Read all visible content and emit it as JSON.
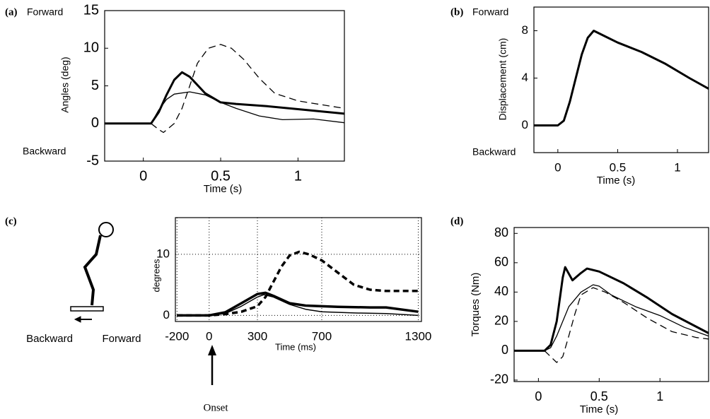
{
  "chart_data": [
    {
      "type": "line",
      "panel": "(a)",
      "forward": "Forward",
      "backward": "Backward",
      "ylabel": "Angles (deg)",
      "xlabel": "Time (s)",
      "xlim": [
        -0.25,
        1.3
      ],
      "ylim": [
        -5,
        15
      ],
      "xticks": [
        0,
        0.5,
        1
      ],
      "yticks": [
        -5,
        0,
        5,
        10,
        15
      ],
      "grid": false,
      "series": [
        {
          "color": "#000000",
          "line_width": 3,
          "dash": false,
          "x": [
            -0.25,
            0.05,
            0.1,
            0.15,
            0.2,
            0.25,
            0.3,
            0.4,
            0.5,
            0.6,
            0.8,
            1.0,
            1.3
          ],
          "values": [
            0,
            0,
            1.5,
            3.8,
            5.8,
            6.8,
            6.2,
            4,
            2.8,
            2.6,
            2.3,
            1.9,
            1.3
          ]
        },
        {
          "color": "#000000",
          "line_width": 1.3,
          "dash": false,
          "x": [
            -0.25,
            0.05,
            0.1,
            0.15,
            0.2,
            0.3,
            0.4,
            0.5,
            0.6,
            0.75,
            0.9,
            1.1,
            1.3
          ],
          "values": [
            0,
            0,
            1.8,
            3.2,
            3.9,
            4.2,
            3.8,
            2.8,
            2,
            1,
            0.5,
            0.6,
            0.1
          ]
        },
        {
          "color": "#000000",
          "line_width": 1.3,
          "dash": true,
          "x": [
            0.05,
            0.1,
            0.13,
            0.2,
            0.25,
            0.3,
            0.35,
            0.42,
            0.5,
            0.57,
            0.65,
            0.75,
            0.85,
            1.0,
            1.15,
            1.3
          ],
          "values": [
            0,
            -0.8,
            -1.2,
            0,
            2,
            5,
            8,
            10,
            10.5,
            10,
            8.5,
            6,
            4,
            3,
            2.5,
            2
          ]
        }
      ]
    },
    {
      "type": "line",
      "panel": "(b)",
      "forward": "Forward",
      "backward": "Backward",
      "ylabel": "Displacement (cm)",
      "xlabel": "Time (s)",
      "xlim": [
        -0.2,
        1.26
      ],
      "ylim": [
        -2.3,
        10
      ],
      "xticks": [
        0,
        0.5,
        1
      ],
      "yticks": [
        0,
        4,
        8
      ],
      "grid": false,
      "series": [
        {
          "color": "#000000",
          "line_width": 3,
          "dash": false,
          "x": [
            -0.2,
            0,
            0.05,
            0.1,
            0.15,
            0.2,
            0.25,
            0.3,
            0.4,
            0.5,
            0.7,
            0.9,
            1.1,
            1.26
          ],
          "values": [
            0,
            0,
            0.4,
            2,
            4,
            6,
            7.4,
            8,
            7.5,
            7,
            6.2,
            5.2,
            4,
            3.1
          ]
        }
      ]
    },
    {
      "type": "line",
      "panel": "(c)",
      "backward": "Backward",
      "forward": "Forward",
      "ylabel": "degrees",
      "xlabel": "Time (ms)",
      "annotation": "Onset",
      "xlim": [
        -210,
        1320
      ],
      "ylim": [
        -1,
        16
      ],
      "xticks": [
        -200,
        0,
        300,
        700,
        1300
      ],
      "yticks": [
        0,
        10
      ],
      "grid": true,
      "series": [
        {
          "color": "#000000",
          "line_width": 3.5,
          "dash": false,
          "x": [
            -200,
            0,
            100,
            200,
            300,
            350,
            400,
            500,
            600,
            800,
            1000,
            1100,
            1300
          ],
          "values": [
            0,
            0,
            0.5,
            2,
            3.5,
            3.7,
            3.2,
            2,
            1.6,
            1.4,
            1.3,
            1.3,
            0.6
          ]
        },
        {
          "color": "#000000",
          "line_width": 1.5,
          "dash": false,
          "x": [
            -200,
            0,
            100,
            200,
            300,
            340,
            400,
            500,
            600,
            700,
            900,
            1100,
            1300
          ],
          "values": [
            0,
            0,
            0.3,
            1.5,
            3,
            3.4,
            3,
            1.8,
            1,
            0.6,
            0.4,
            0.3,
            0
          ]
        },
        {
          "color": "#000000",
          "line_width": 3.5,
          "dash": true,
          "x": [
            -200,
            0,
            100,
            200,
            300,
            350,
            400,
            450,
            500,
            560,
            620,
            700,
            800,
            900,
            1000,
            1100,
            1300
          ],
          "values": [
            0,
            0,
            0.2,
            0.6,
            1.5,
            3,
            5.5,
            8,
            9.8,
            10.4,
            10,
            9,
            7,
            5,
            4.2,
            4,
            4
          ]
        }
      ]
    },
    {
      "type": "line",
      "panel": "(d)",
      "ylabel": "Torques (Nm)",
      "xlabel": "Time (s)",
      "xlim": [
        -0.2,
        1.4
      ],
      "ylim": [
        -21,
        84
      ],
      "xticks": [
        0,
        0.5,
        1
      ],
      "yticks": [
        -20,
        0,
        20,
        40,
        60,
        80
      ],
      "grid": false,
      "series": [
        {
          "color": "#000000",
          "line_width": 3,
          "dash": false,
          "x": [
            -0.2,
            0.05,
            0.1,
            0.15,
            0.2,
            0.22,
            0.28,
            0.35,
            0.4,
            0.5,
            0.7,
            0.9,
            1.1,
            1.4
          ],
          "values": [
            0,
            0,
            4,
            20,
            50,
            57,
            48,
            53,
            56,
            54,
            46,
            36,
            25,
            12
          ]
        },
        {
          "color": "#000000",
          "line_width": 1.3,
          "dash": false,
          "x": [
            -0.2,
            0.05,
            0.1,
            0.15,
            0.25,
            0.35,
            0.45,
            0.5,
            0.6,
            0.8,
            1.0,
            1.2,
            1.4
          ],
          "values": [
            0,
            0,
            2,
            10,
            30,
            40,
            45,
            44,
            38,
            30,
            24,
            16,
            10
          ]
        },
        {
          "color": "#000000",
          "line_width": 1.3,
          "dash": true,
          "x": [
            0.05,
            0.1,
            0.15,
            0.2,
            0.25,
            0.3,
            0.35,
            0.45,
            0.55,
            0.7,
            0.9,
            1.1,
            1.3,
            1.4
          ],
          "values": [
            0,
            -4,
            -8,
            -4,
            10,
            25,
            38,
            43,
            40,
            33,
            22,
            13,
            9,
            8
          ]
        }
      ]
    }
  ]
}
